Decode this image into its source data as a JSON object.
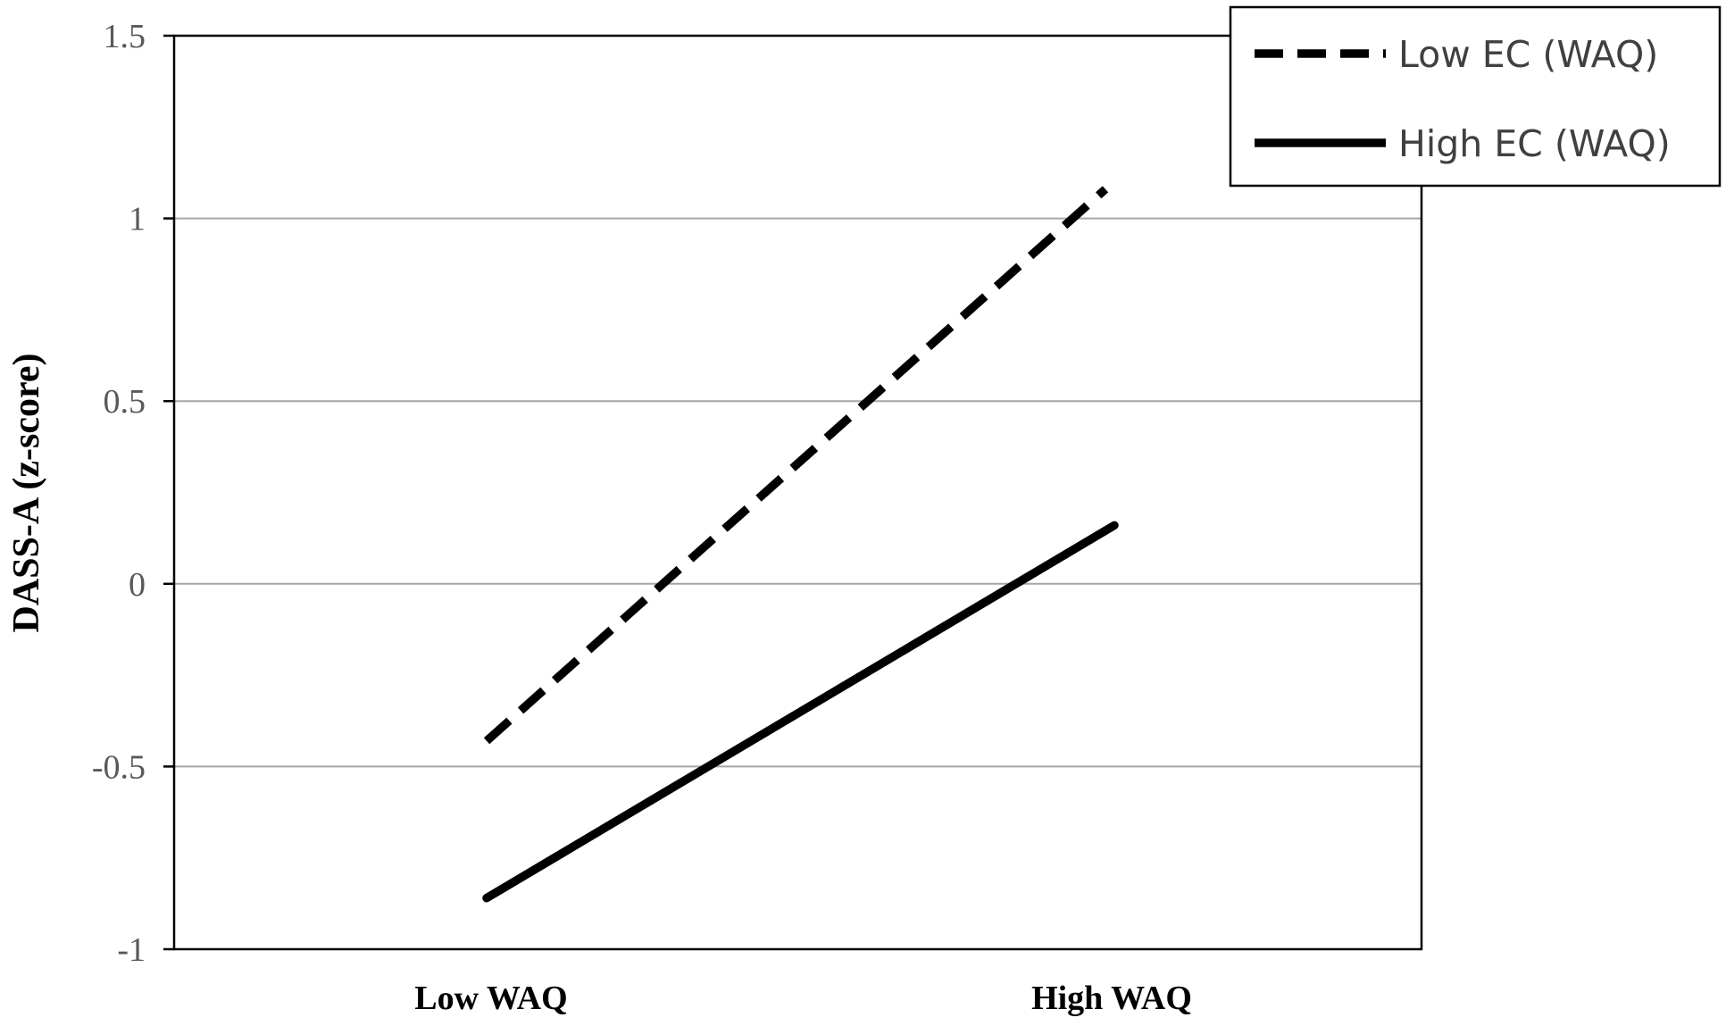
{
  "chart_data": {
    "type": "line",
    "categories": [
      "Low WAQ",
      "High WAQ"
    ],
    "series": [
      {
        "name": "Low EC (WAQ)",
        "values": [
          -0.43,
          1.08
        ],
        "style": "dashed",
        "color": "#000000"
      },
      {
        "name": "High EC (WAQ)",
        "values": [
          -0.86,
          0.16
        ],
        "style": "solid",
        "color": "#000000"
      }
    ],
    "ylabel": "DASS-A  (z-score)",
    "xlabel": "",
    "ylim": [
      -1,
      1.5
    ],
    "yticks": [
      {
        "value": -1,
        "label": "-1"
      },
      {
        "value": -0.5,
        "label": "-0.5"
      },
      {
        "value": 0,
        "label": "0"
      },
      {
        "value": 0.5,
        "label": "0.5"
      },
      {
        "value": 1,
        "label": "1"
      },
      {
        "value": 1.5,
        "label": "1.5"
      }
    ],
    "grid": true,
    "legend_position": "top-right",
    "colors": {
      "gridline": "#a6a6a6",
      "frame": "#000000",
      "tick_text": "#595959"
    }
  }
}
